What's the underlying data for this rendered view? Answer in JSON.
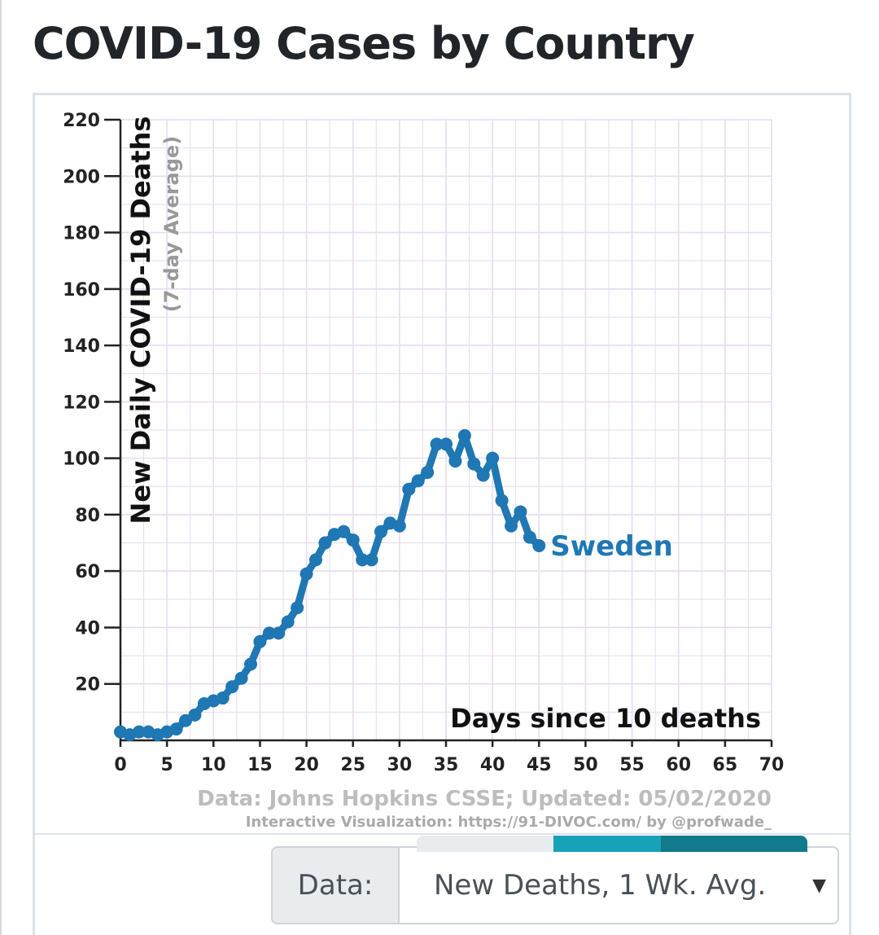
{
  "page": {
    "title": "COVID-19 Cases by Country"
  },
  "chart_data": {
    "type": "line",
    "series": [
      {
        "name": "Sweden",
        "color": "#1f77b4",
        "x": [
          0,
          1,
          2,
          3,
          4,
          5,
          6,
          7,
          8,
          9,
          10,
          11,
          12,
          13,
          14,
          15,
          16,
          17,
          18,
          19,
          20,
          21,
          22,
          23,
          24,
          25,
          26,
          27,
          28,
          29,
          30,
          31,
          32,
          33,
          34,
          35,
          36,
          37,
          38,
          39,
          40,
          41,
          42,
          43,
          44,
          45
        ],
        "values": [
          3,
          2,
          3,
          3,
          2,
          3,
          4,
          7,
          9,
          13,
          14,
          15,
          19,
          22,
          27,
          35,
          38,
          38,
          42,
          47,
          59,
          64,
          70,
          73,
          74,
          71,
          64,
          64,
          74,
          77,
          76,
          89,
          92,
          95,
          105,
          105,
          99,
          108,
          98,
          94,
          100,
          85,
          76,
          81,
          72,
          69
        ]
      }
    ],
    "xlabel": "Days since 10 deaths",
    "ylabel": "New Daily COVID-19 Deaths",
    "ylabel_sub": "(7-day Average)",
    "xlim": [
      0,
      70
    ],
    "ylim": [
      0,
      220
    ],
    "x_ticks": [
      "0",
      "5",
      "10",
      "15",
      "20",
      "25",
      "30",
      "35",
      "40",
      "45",
      "50",
      "55",
      "60",
      "65",
      "70"
    ],
    "y_ticks": [
      "20",
      "40",
      "60",
      "80",
      "100",
      "120",
      "140",
      "160",
      "180",
      "200",
      "220"
    ],
    "grid": true,
    "source": "Data: Johns Hopkins CSSE; Updated: 05/02/2020",
    "credit": "Interactive Visualization: https://91-DIVOC.com/ by @profwade_"
  },
  "controls": {
    "data_label": "Data:",
    "data_selected": "New Deaths, 1 Wk. Avg.",
    "caret": "▼"
  },
  "colors": {
    "series": "#1f77b4",
    "grid": "#e6dcef",
    "axis": "#222222",
    "muted_text": "#b3b3b3"
  }
}
